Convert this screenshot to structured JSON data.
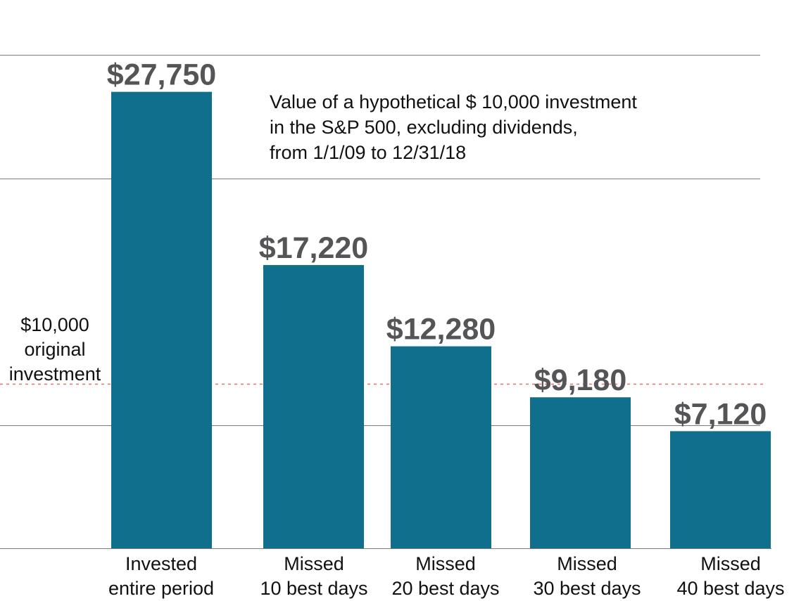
{
  "chart_data": {
    "type": "bar",
    "title_lines": [
      "Value of a hypothetical $ 10,000 investment",
      "in the S&P 500, excluding dividends,",
      "from 1/1/09 to 12/31/18"
    ],
    "categories": [
      [
        "Invested",
        "entire period"
      ],
      [
        "Missed",
        "10 best days"
      ],
      [
        "Missed",
        "20 best days"
      ],
      [
        "Missed",
        "30 best days"
      ],
      [
        "Missed",
        "40 best days"
      ]
    ],
    "values": [
      27750,
      17220,
      12280,
      9180,
      7120
    ],
    "value_labels": [
      "$27,750",
      "$17,220",
      "$12,280",
      "$9,180",
      "$7,120"
    ],
    "reference": {
      "value": 10000,
      "label_lines": [
        "$10,000",
        "original",
        "investment"
      ],
      "color": "#e8706a"
    },
    "ylim": [
      0,
      30000
    ],
    "gridlines": [
      0,
      7500,
      22500,
      30000
    ],
    "grid": true,
    "legend": "none",
    "colors": {
      "bar": "#0f6f8c",
      "value_label": "#555557",
      "text": "#111111",
      "grid": "#7a7a7a"
    }
  }
}
